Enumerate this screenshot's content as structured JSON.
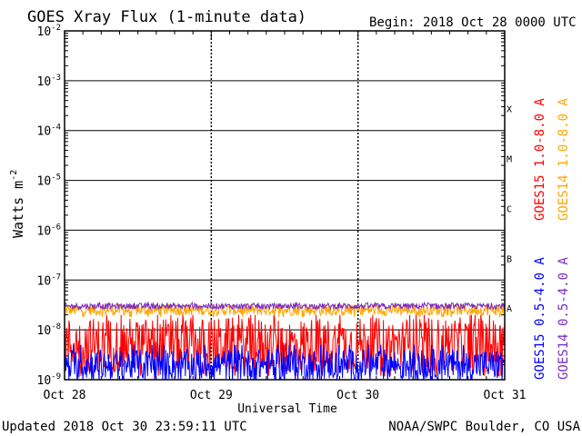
{
  "header": {
    "title": "GOES Xray Flux (1-minute data)",
    "begin": "Begin:  2018 Oct 28 0000 UTC"
  },
  "footer": {
    "updated": "Updated 2018 Oct 30 23:59:11 UTC",
    "credit": "NOAA/SWPC Boulder, CO USA"
  },
  "chart_data": {
    "type": "line",
    "xlabel": "Universal Time",
    "ylabel": "Watts m",
    "ylabel_exponent": "-2",
    "y_scale": "log",
    "ylim": [
      1e-09,
      0.01
    ],
    "x_ticks": [
      "Oct 28",
      "Oct 29",
      "Oct 30",
      "Oct 31"
    ],
    "x_range_days": [
      0,
      3
    ],
    "y_ticks": [
      {
        "base": "10",
        "exp": "-9"
      },
      {
        "base": "10",
        "exp": "-8"
      },
      {
        "base": "10",
        "exp": "-7"
      },
      {
        "base": "10",
        "exp": "-6"
      },
      {
        "base": "10",
        "exp": "-5"
      },
      {
        "base": "10",
        "exp": "-4"
      },
      {
        "base": "10",
        "exp": "-3"
      },
      {
        "base": "10",
        "exp": "-2"
      }
    ],
    "flare_classes": [
      "A",
      "B",
      "C",
      "M",
      "X"
    ],
    "flare_class_thresholds": [
      1e-08,
      1e-07,
      1e-06,
      1e-05,
      0.0001
    ],
    "grid": true,
    "series": [
      {
        "name": "GOES15 1.0-8.0 A",
        "color": "#ff0000",
        "typical_value": 5e-09,
        "range": [
          1.2e-09,
          2e-08
        ]
      },
      {
        "name": "GOES14 1.0-8.0 A",
        "color": "#ffa500",
        "typical_value": 2.5e-08,
        "range": [
          1.8e-08,
          3.2e-08
        ]
      },
      {
        "name": "GOES15 0.5-4.0 A",
        "color": "#0000ff",
        "typical_value": 2e-09,
        "range": [
          1e-09,
          5e-09
        ]
      },
      {
        "name": "GOES14 0.5-4.0 A",
        "color": "#7b2bbf",
        "typical_value": 3e-08,
        "range": [
          2.6e-08,
          3.5e-08
        ]
      }
    ]
  }
}
